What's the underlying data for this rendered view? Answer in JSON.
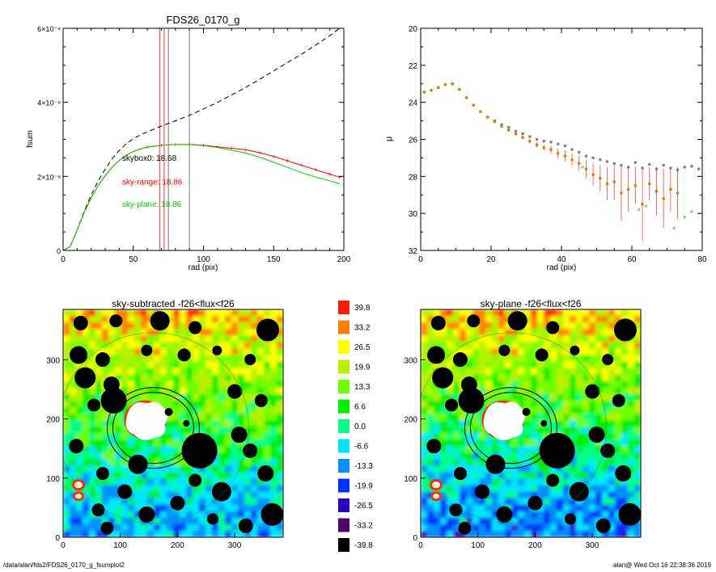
{
  "footer": {
    "path": "/data/alan/fds2/FDS26_0170_g_fsumplot2",
    "user_time": "alan@  Wed Oct 16 22:38:36 2019"
  },
  "chart_data": [
    {
      "type": "line",
      "title": "FDS26_0170_g",
      "xlabel": "rad (pix)",
      "ylabel": "fsum",
      "xlim": [
        0,
        200
      ],
      "ylim": [
        0,
        6e-08
      ],
      "xticks": [
        "0",
        "50",
        "100",
        "150",
        "200"
      ],
      "yticks": [
        {
          "v": 0,
          "label": "0"
        },
        {
          "v": 2e-08,
          "label": "2×10⁻⁸"
        },
        {
          "v": 4e-08,
          "label": "4×10⁻⁸"
        },
        {
          "v": 6e-08,
          "label": "6×10⁻⁸"
        }
      ],
      "vlines": [
        {
          "x": 69,
          "color": "#ff0000"
        },
        {
          "x": 72,
          "color": "#ff0000"
        },
        {
          "x": 75,
          "color": "#555555"
        },
        {
          "x": 90,
          "color": "#555555"
        }
      ],
      "annotations": [
        {
          "text": "skybox0: 18.68",
          "color": "#000000",
          "x": 42,
          "y": 2.42e-08
        },
        {
          "text": "sky-range: 18.86",
          "color": "#ff0000",
          "x": 42,
          "y": 1.78e-08
        },
        {
          "text": "sky-plane: 18.86",
          "color": "#00cc00",
          "x": 42,
          "y": 1.18e-08
        }
      ],
      "series": [
        {
          "style": "dashed",
          "color": "#000000",
          "x": [
            0,
            5,
            10,
            15,
            20,
            25,
            30,
            35,
            40,
            45,
            50,
            55,
            60,
            70,
            80,
            90,
            100,
            110,
            120,
            130,
            140,
            150,
            160,
            170,
            180,
            190,
            197
          ],
          "y": [
            0,
            1e-09,
            5.5e-09,
            1.05e-08,
            1.5e-08,
            1.88e-08,
            2.2e-08,
            2.48e-08,
            2.7e-08,
            2.88e-08,
            3.02e-08,
            3.12e-08,
            3.2e-08,
            3.36e-08,
            3.5e-08,
            3.65e-08,
            3.82e-08,
            4e-08,
            4.2e-08,
            4.4e-08,
            4.62e-08,
            4.85e-08,
            5.08e-08,
            5.3e-08,
            5.55e-08,
            5.8e-08,
            6e-08
          ]
        },
        {
          "style": "solid",
          "color": "#ff0000",
          "x": [
            0,
            5,
            10,
            15,
            20,
            25,
            30,
            35,
            40,
            45,
            50,
            55,
            60,
            70,
            80,
            90,
            100,
            110,
            120,
            130,
            140,
            150,
            160,
            170,
            180,
            190,
            197
          ],
          "y": [
            0,
            1e-09,
            5.5e-09,
            1.02e-08,
            1.42e-08,
            1.75e-08,
            2.02e-08,
            2.25e-08,
            2.43e-08,
            2.57e-08,
            2.67e-08,
            2.74e-08,
            2.79e-08,
            2.84e-08,
            2.86e-08,
            2.86e-08,
            2.84e-08,
            2.8e-08,
            2.76e-08,
            2.72e-08,
            2.64e-08,
            2.54e-08,
            2.42e-08,
            2.3e-08,
            2.18e-08,
            2.06e-08,
            1.98e-08
          ]
        },
        {
          "style": "solid",
          "color": "#00cc00",
          "x": [
            0,
            5,
            10,
            15,
            20,
            25,
            30,
            35,
            40,
            45,
            50,
            55,
            60,
            70,
            80,
            90,
            100,
            110,
            120,
            130,
            140,
            150,
            160,
            170,
            180,
            190,
            197
          ],
          "y": [
            0,
            1e-09,
            5.5e-09,
            1.02e-08,
            1.42e-08,
            1.75e-08,
            2.02e-08,
            2.25e-08,
            2.43e-08,
            2.57e-08,
            2.67e-08,
            2.74e-08,
            2.79e-08,
            2.84e-08,
            2.86e-08,
            2.86e-08,
            2.83e-08,
            2.78e-08,
            2.71e-08,
            2.63e-08,
            2.52e-08,
            2.38e-08,
            2.24e-08,
            2.1e-08,
            1.98e-08,
            1.88e-08,
            1.8e-08
          ]
        }
      ]
    },
    {
      "type": "scatter",
      "title": "",
      "xlabel": "rad (pix)",
      "ylabel": "μ",
      "xlim": [
        0,
        80
      ],
      "ylim": [
        32,
        20
      ],
      "xticks": [
        "0",
        "20",
        "40",
        "60",
        "80"
      ],
      "yticks": [
        "20",
        "22",
        "24",
        "26",
        "28",
        "30",
        "32"
      ],
      "series": [
        {
          "color": "#808080",
          "marker": "square",
          "x": [
            1,
            3,
            5,
            7,
            9,
            11,
            13,
            15,
            17,
            19,
            21,
            23,
            25,
            27,
            29,
            31,
            33,
            35,
            37,
            39,
            41,
            43,
            45,
            47,
            49,
            51,
            53,
            55,
            57,
            59,
            61,
            63,
            65,
            67,
            69,
            71,
            73,
            75,
            77,
            79
          ],
          "y": [
            23.45,
            23.35,
            23.2,
            23.05,
            23.0,
            23.3,
            23.75,
            24.15,
            24.5,
            24.8,
            25.0,
            25.2,
            25.35,
            25.55,
            25.7,
            25.85,
            26.0,
            26.1,
            26.15,
            26.25,
            26.35,
            26.55,
            26.7,
            26.9,
            27.0,
            27.1,
            27.2,
            27.3,
            27.4,
            27.5,
            27.25,
            27.55,
            27.35,
            27.6,
            27.4,
            27.55,
            27.65,
            27.5,
            27.45,
            27.6
          ]
        },
        {
          "color": "#d08000",
          "marker": "square",
          "err_color": "#ff4444",
          "x": [
            1,
            3,
            5,
            7,
            9,
            11,
            13,
            15,
            17,
            19,
            21,
            23,
            25,
            27,
            29,
            31,
            33,
            35,
            37,
            39,
            41,
            43,
            45,
            47,
            49,
            51,
            53,
            55,
            57,
            59,
            61,
            63,
            65,
            67,
            69,
            71,
            73
          ],
          "y": [
            23.45,
            23.35,
            23.2,
            23.05,
            23.0,
            23.3,
            23.75,
            24.15,
            24.5,
            24.8,
            25.05,
            25.3,
            25.5,
            25.7,
            25.9,
            26.1,
            26.3,
            26.45,
            26.55,
            26.75,
            26.9,
            27.1,
            27.3,
            27.6,
            27.9,
            28.1,
            28.4,
            28.3,
            28.9,
            28.7,
            28.5,
            29.5,
            28.4,
            28.8,
            29.2,
            28.7,
            28.9
          ],
          "err": [
            0.02,
            0.02,
            0.02,
            0.02,
            0.02,
            0.02,
            0.03,
            0.03,
            0.04,
            0.04,
            0.05,
            0.06,
            0.07,
            0.08,
            0.1,
            0.12,
            0.14,
            0.16,
            0.2,
            0.25,
            0.3,
            0.35,
            0.4,
            0.5,
            0.6,
            0.7,
            0.9,
            1.0,
            1.5,
            1.2,
            1.0,
            2.0,
            0.9,
            1.3,
            1.6,
            1.2,
            1.4
          ]
        },
        {
          "color": "#66ee66",
          "marker": "square",
          "x": [
            46,
            62,
            64,
            72,
            75,
            77
          ],
          "y": [
            27.5,
            29.8,
            29.6,
            30.8,
            30.2,
            29.9
          ]
        }
      ]
    },
    {
      "type": "heatmap",
      "title": "sky-subtracted -f26<flux<f26",
      "xlim": [
        0,
        385
      ],
      "ylim": [
        0,
        385
      ],
      "xticks": [
        "0",
        "100",
        "200",
        "300"
      ],
      "yticks": [
        "0",
        "100",
        "200",
        "300"
      ]
    },
    {
      "type": "heatmap",
      "title": "sky-plane -f26<flux<f26",
      "xlim": [
        0,
        385
      ],
      "ylim": [
        0,
        385
      ],
      "xticks": [
        "0",
        "100",
        "200",
        "300"
      ],
      "yticks": [
        "0",
        "100",
        "200",
        "300"
      ]
    },
    {
      "type": "colorbar",
      "labels": [
        "39.8",
        "33.2",
        "26.5",
        "19.9",
        "13.3",
        "6.6",
        "0.0",
        "-6.6",
        "-13.3",
        "-19.9",
        "-26.5",
        "-33.2",
        "-39.8"
      ],
      "colors": [
        "#ff1a00",
        "#ff8000",
        "#ffff00",
        "#b8f000",
        "#70ff00",
        "#00ee00",
        "#00ff88",
        "#00e6ff",
        "#0090ff",
        "#0030ff",
        "#3000c0",
        "#500070",
        "#000000"
      ]
    }
  ]
}
